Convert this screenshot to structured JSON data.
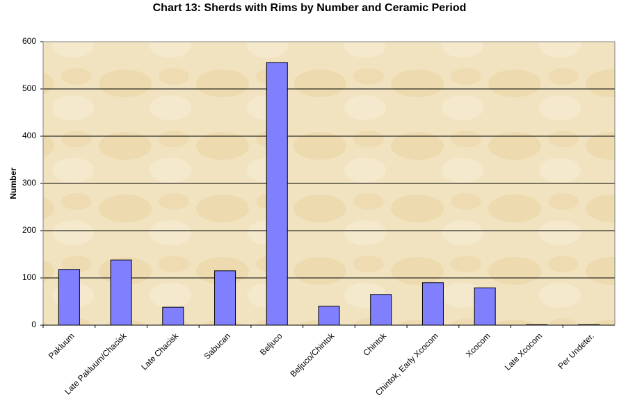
{
  "chart_data": {
    "type": "bar",
    "title": "Chart 13: Sherds with Rims by Number and Ceramic Period",
    "y_label": "Number",
    "categories": [
      "Pakluum",
      "Late Pakluum/Chacisk",
      "Late Chacisk",
      "Sabucan",
      "Beljuco",
      "Beljuco/Chintok",
      "Chintok",
      "Chintok, Early Xcocom",
      "Xcocom",
      "Late Xcocom",
      "Per Undeter."
    ],
    "values": [
      118,
      138,
      38,
      115,
      556,
      40,
      65,
      90,
      79,
      1,
      1
    ],
    "color": "#8080ff",
    "ylim": [
      0,
      600
    ],
    "yticks": [
      0,
      100,
      200,
      300,
      400,
      500,
      600
    ],
    "grid": true
  }
}
